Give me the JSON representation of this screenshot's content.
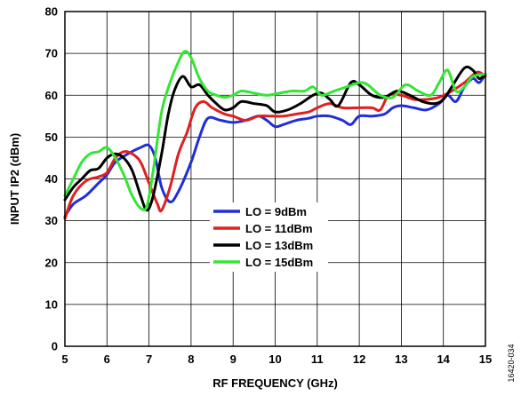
{
  "figure_id": "16420-034",
  "chart_data": {
    "type": "line",
    "title": "",
    "xlabel": "RF FREQUENCY (GHz)",
    "ylabel": "INPUT IP2 (dBm)",
    "xlim": [
      5,
      15
    ],
    "ylim": [
      0,
      80
    ],
    "xticks": [
      5,
      6,
      7,
      8,
      9,
      10,
      11,
      12,
      13,
      14,
      15
    ],
    "yticks": [
      0,
      10,
      20,
      30,
      40,
      50,
      60,
      70,
      80
    ],
    "grid": true,
    "legend_position": "center",
    "series": [
      {
        "name": "LO = 9dBm",
        "color": "#1f2fd6",
        "points": [
          [
            5.0,
            31
          ],
          [
            5.2,
            34
          ],
          [
            5.5,
            36
          ],
          [
            5.8,
            39
          ],
          [
            6.0,
            41
          ],
          [
            6.2,
            44
          ],
          [
            6.5,
            46
          ],
          [
            6.8,
            47.5
          ],
          [
            7.0,
            48
          ],
          [
            7.15,
            45
          ],
          [
            7.3,
            38
          ],
          [
            7.5,
            34.5
          ],
          [
            7.7,
            37
          ],
          [
            8.0,
            44
          ],
          [
            8.2,
            50
          ],
          [
            8.4,
            54.5
          ],
          [
            8.7,
            54
          ],
          [
            9.0,
            53.5
          ],
          [
            9.3,
            54
          ],
          [
            9.6,
            55
          ],
          [
            9.8,
            54
          ],
          [
            10.0,
            52.5
          ],
          [
            10.2,
            53
          ],
          [
            10.5,
            54
          ],
          [
            10.8,
            54.5
          ],
          [
            11.0,
            55
          ],
          [
            11.3,
            55
          ],
          [
            11.6,
            54
          ],
          [
            11.8,
            53
          ],
          [
            12.0,
            55
          ],
          [
            12.3,
            55
          ],
          [
            12.6,
            55.5
          ],
          [
            12.8,
            57
          ],
          [
            13.0,
            57.5
          ],
          [
            13.3,
            57
          ],
          [
            13.6,
            56.5
          ],
          [
            13.9,
            58
          ],
          [
            14.1,
            60
          ],
          [
            14.3,
            58.5
          ],
          [
            14.5,
            62
          ],
          [
            14.7,
            64
          ],
          [
            14.85,
            63
          ],
          [
            15.0,
            65
          ]
        ]
      },
      {
        "name": "LO = 11dBm",
        "color": "#e01f1f",
        "points": [
          [
            5.0,
            30.5
          ],
          [
            5.2,
            36
          ],
          [
            5.5,
            39.5
          ],
          [
            5.8,
            40.5
          ],
          [
            6.0,
            41.5
          ],
          [
            6.2,
            45
          ],
          [
            6.4,
            46.5
          ],
          [
            6.6,
            46
          ],
          [
            6.8,
            44
          ],
          [
            7.0,
            39
          ],
          [
            7.2,
            34
          ],
          [
            7.3,
            32.5
          ],
          [
            7.5,
            38
          ],
          [
            7.7,
            46
          ],
          [
            7.9,
            51
          ],
          [
            8.1,
            57
          ],
          [
            8.3,
            58.5
          ],
          [
            8.5,
            57
          ],
          [
            8.8,
            55.5
          ],
          [
            9.0,
            55
          ],
          [
            9.3,
            54
          ],
          [
            9.6,
            55
          ],
          [
            9.9,
            55
          ],
          [
            10.2,
            55
          ],
          [
            10.5,
            55.5
          ],
          [
            10.8,
            56
          ],
          [
            11.0,
            57
          ],
          [
            11.3,
            58
          ],
          [
            11.6,
            57
          ],
          [
            12.0,
            57
          ],
          [
            12.3,
            57
          ],
          [
            12.5,
            56.5
          ],
          [
            12.7,
            60
          ],
          [
            13.0,
            60
          ],
          [
            13.3,
            59
          ],
          [
            13.6,
            59
          ],
          [
            13.9,
            59.5
          ],
          [
            14.2,
            61
          ],
          [
            14.5,
            63
          ],
          [
            14.8,
            65.5
          ],
          [
            15.0,
            64.5
          ]
        ]
      },
      {
        "name": "LO = 13dBm",
        "color": "#000000",
        "points": [
          [
            5.0,
            35
          ],
          [
            5.2,
            38
          ],
          [
            5.4,
            40
          ],
          [
            5.6,
            42
          ],
          [
            5.8,
            42.5
          ],
          [
            6.0,
            45
          ],
          [
            6.2,
            46
          ],
          [
            6.4,
            45
          ],
          [
            6.6,
            42
          ],
          [
            6.8,
            36
          ],
          [
            6.95,
            32.5
          ],
          [
            7.1,
            36
          ],
          [
            7.3,
            46
          ],
          [
            7.45,
            55
          ],
          [
            7.6,
            61
          ],
          [
            7.8,
            64.5
          ],
          [
            8.0,
            62
          ],
          [
            8.2,
            62.5
          ],
          [
            8.4,
            60
          ],
          [
            8.6,
            58
          ],
          [
            8.8,
            56.5
          ],
          [
            9.0,
            57
          ],
          [
            9.2,
            58.5
          ],
          [
            9.5,
            58
          ],
          [
            9.8,
            57.5
          ],
          [
            10.0,
            56
          ],
          [
            10.3,
            56.5
          ],
          [
            10.6,
            58
          ],
          [
            10.9,
            60
          ],
          [
            11.1,
            60.5
          ],
          [
            11.3,
            59
          ],
          [
            11.5,
            57.5
          ],
          [
            11.8,
            63
          ],
          [
            12.0,
            62.5
          ],
          [
            12.3,
            60
          ],
          [
            12.6,
            59.5
          ],
          [
            12.9,
            61
          ],
          [
            13.2,
            60
          ],
          [
            13.5,
            58.5
          ],
          [
            13.8,
            58
          ],
          [
            14.0,
            59
          ],
          [
            14.2,
            62
          ],
          [
            14.5,
            66.5
          ],
          [
            14.7,
            66
          ],
          [
            14.85,
            64
          ],
          [
            15.0,
            65
          ]
        ]
      },
      {
        "name": "LO = 15dBm",
        "color": "#33e633",
        "points": [
          [
            5.0,
            36
          ],
          [
            5.2,
            40
          ],
          [
            5.4,
            44
          ],
          [
            5.6,
            46
          ],
          [
            5.8,
            46.5
          ],
          [
            6.0,
            47.5
          ],
          [
            6.2,
            45
          ],
          [
            6.4,
            41
          ],
          [
            6.6,
            36
          ],
          [
            6.8,
            33
          ],
          [
            6.95,
            33.5
          ],
          [
            7.1,
            42
          ],
          [
            7.3,
            56
          ],
          [
            7.5,
            63
          ],
          [
            7.7,
            68
          ],
          [
            7.85,
            70.5
          ],
          [
            8.0,
            69
          ],
          [
            8.2,
            64
          ],
          [
            8.4,
            61
          ],
          [
            8.6,
            60
          ],
          [
            8.8,
            59.5
          ],
          [
            9.0,
            60
          ],
          [
            9.2,
            61
          ],
          [
            9.5,
            60.5
          ],
          [
            9.8,
            60
          ],
          [
            10.1,
            60.5
          ],
          [
            10.4,
            61
          ],
          [
            10.7,
            61
          ],
          [
            10.9,
            62
          ],
          [
            11.1,
            60
          ],
          [
            11.4,
            61
          ],
          [
            11.7,
            62
          ],
          [
            12.0,
            63
          ],
          [
            12.2,
            62.5
          ],
          [
            12.5,
            60
          ],
          [
            12.8,
            59.5
          ],
          [
            13.1,
            62.5
          ],
          [
            13.4,
            61
          ],
          [
            13.7,
            60
          ],
          [
            13.9,
            63
          ],
          [
            14.1,
            66
          ],
          [
            14.3,
            61
          ],
          [
            14.5,
            62
          ],
          [
            14.7,
            64.5
          ],
          [
            15.0,
            65
          ]
        ]
      }
    ]
  }
}
